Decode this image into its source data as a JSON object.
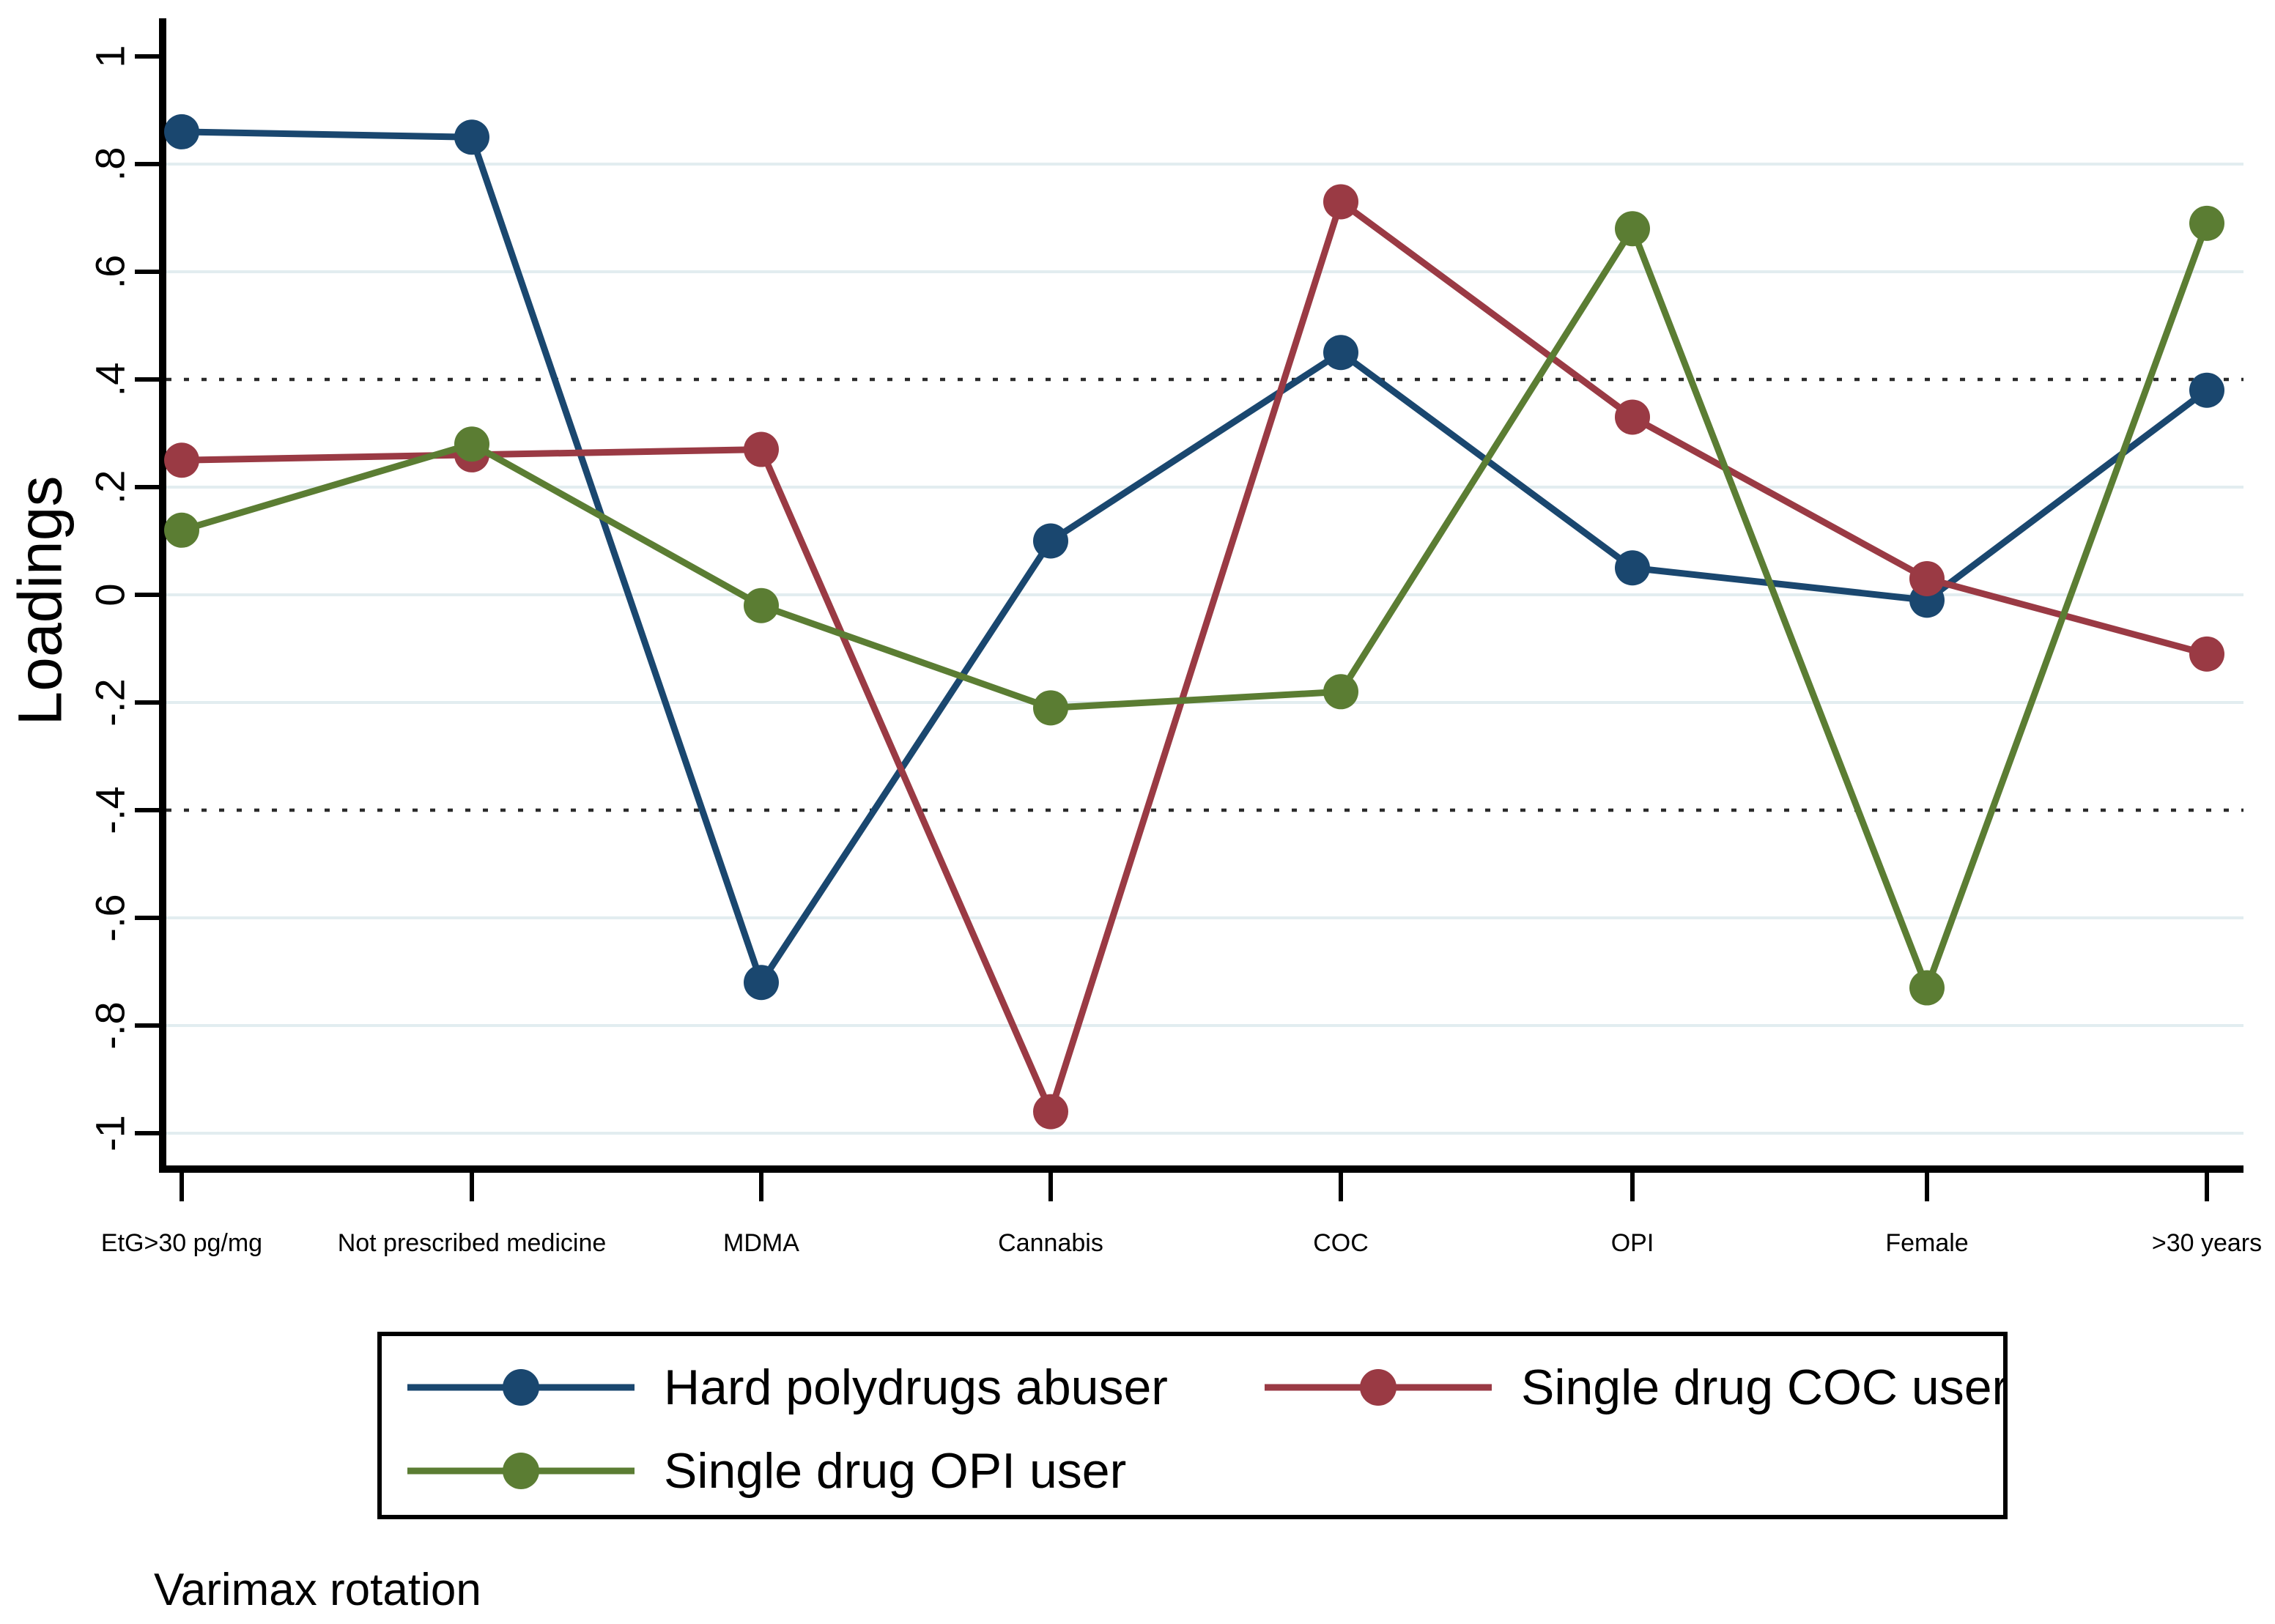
{
  "chart_data": {
    "type": "line",
    "title": "",
    "ylabel": "Loadings",
    "xlabel": "",
    "note": "Varimax rotation",
    "categories": [
      "EtG>30 pg/mg",
      "Not prescribed medicine",
      "MDMA",
      "Cannabis",
      "COC",
      "OPI",
      "Female",
      ">30 years"
    ],
    "series": [
      {
        "name": "Hard polydrugs abuser",
        "color": "#1a476f",
        "values": [
          0.86,
          0.85,
          -0.72,
          0.1,
          0.45,
          0.05,
          -0.01,
          0.38
        ]
      },
      {
        "name": "Single drug COC user",
        "color": "#9a3a44",
        "values": [
          0.25,
          0.26,
          0.27,
          -0.96,
          0.73,
          0.33,
          0.03,
          -0.11
        ]
      },
      {
        "name": "Single drug OPI user",
        "color": "#5b7d33",
        "values": [
          0.12,
          0.28,
          -0.02,
          -0.21,
          -0.18,
          0.68,
          -0.73,
          0.69
        ]
      }
    ],
    "ylim": [
      -1,
      1
    ],
    "yticks": {
      "values": [
        1,
        0.8,
        0.6,
        0.4,
        0.2,
        0,
        -0.2,
        -0.4,
        -0.6,
        -0.8,
        -1
      ],
      "labels": [
        "1",
        ".8",
        ".6",
        ".4",
        ".2",
        "0",
        "-.2",
        "-.4",
        "-.6",
        "-.8",
        "-1"
      ]
    },
    "y_gridlines": [
      0.8,
      0.6,
      0.2,
      0,
      -0.2,
      -0.6,
      -0.8,
      -1
    ],
    "reference_lines": [
      0.4,
      -0.4
    ],
    "grid": true,
    "legend_position": "bottom-box",
    "colors": {
      "gridline": "#e2edf0",
      "reference_line": "#2b2b2b",
      "axis": "#000000",
      "text": "#000000",
      "background": "#ffffff"
    }
  }
}
